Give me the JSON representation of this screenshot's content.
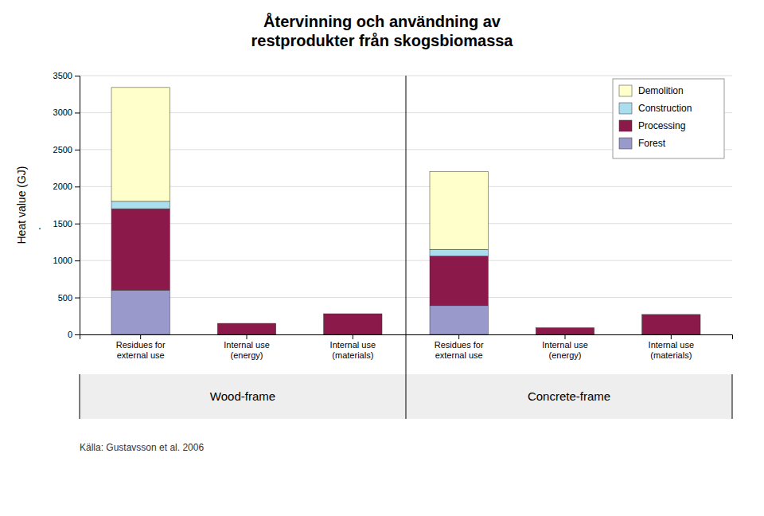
{
  "chart_data": {
    "type": "bar",
    "stacked": true,
    "title": "Återvinning och användning av\nrestprodukter från skogsbiomassa",
    "y_label": "Heat value (GJ)",
    "categories": [
      "Residues for\nexternal use",
      "Internal use\n(energy)",
      "Internal use\n(materials)",
      "Residues for\nexternal use",
      "Internal use\n(energy)",
      "Internal use\n(materials)"
    ],
    "group_labels": [
      "Wood-frame",
      "Concrete-frame"
    ],
    "series": [
      {
        "name": "Forest",
        "color": "#9999cc",
        "values": [
          600,
          0,
          0,
          390,
          0,
          0
        ]
      },
      {
        "name": "Processing",
        "color": "#8b1a4a",
        "values": [
          1100,
          150,
          280,
          670,
          90,
          270
        ]
      },
      {
        "name": "Construction",
        "color": "#aaddee",
        "values": [
          100,
          0,
          0,
          90,
          0,
          0
        ]
      },
      {
        "name": "Demolition",
        "color": "#ffffcc",
        "values": [
          1540,
          0,
          0,
          1050,
          0,
          0
        ]
      }
    ],
    "ylim": [
      0,
      3500
    ],
    "yticks": [
      0,
      500,
      1000,
      1500,
      2000,
      2500,
      3000,
      3500
    ],
    "grid": true,
    "legend": "upper right",
    "annotations": [
      "."
    ],
    "footnote": "Källa: Gustavsson et al. 2006"
  }
}
